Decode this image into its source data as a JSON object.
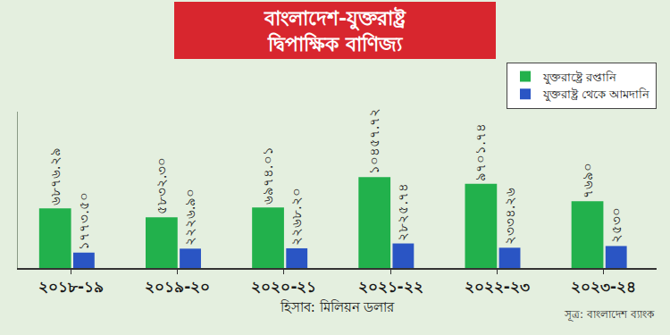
{
  "chart_data": {
    "type": "bar",
    "title": "বাংলাদেশ-যুক্তরাষ্ট্র দ্বিপাক্ষিক বাণিজ্য",
    "xlabel": "হিসাব: মিলিয়ন ডলার",
    "source": "সূত্র: বাংলাদেশ ব্যাংক",
    "categories": [
      "২০১৮-১৯",
      "২০১৯-২০",
      "২০২০-২১",
      "২০২১-২২",
      "২০২২-২৩",
      "২০২৩-২৪"
    ],
    "series": [
      {
        "name": "যুক্তরাষ্ট্রে রপ্তানি",
        "color": "#22b14c",
        "values": [
          6876.29,
          5832.3,
          6974.01,
          10457.72,
          9701.74,
          7690
        ],
        "value_labels": [
          "৬৮৭৬.২৯",
          "৫৮৩২.৩০",
          "৬৯৭৪.০১",
          "১০৪৫৭.৭২",
          "৯৭০১.৭৪",
          "৭৬৯০"
        ]
      },
      {
        "name": "যুক্তরাষ্ট্র থেকে আমদানি",
        "color": "#2a55c4",
        "values": [
          1773.5,
          2226.9,
          2268.2,
          2825.74,
          2334.26,
          2530
        ],
        "value_labels": [
          "১৭৭৩.৫০",
          "২২২৬.৯০",
          "২২৬৮.২০",
          "২৮২৫.৭৪",
          "২৩৩৪.২৬",
          "২৫৩০"
        ]
      }
    ],
    "ylim": [
      0,
      18000
    ],
    "yticks": [],
    "grid": false,
    "legend": "upper right",
    "data_labels": true,
    "tick_labels": "x"
  }
}
